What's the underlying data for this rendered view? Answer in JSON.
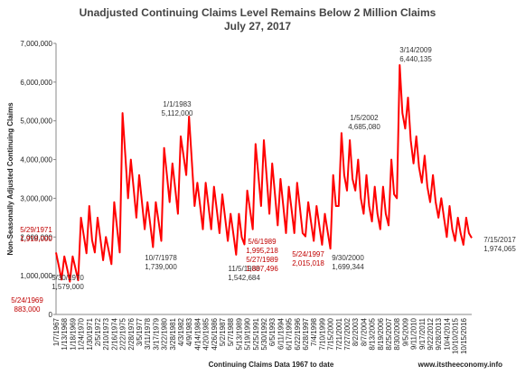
{
  "chart_data": {
    "type": "line",
    "title": "Unadjusted Continuing Claims Level Remains Below 2 Million Claims",
    "subtitle": "July 27, 2017",
    "y_label": "Non-Seasonally Adjusted Continuing Claims",
    "x_label": "Continuing Claims Data 1967 to date",
    "source": "www.itstheeconomy.info",
    "color": "#ff0000",
    "grid": false,
    "ylim": [
      0,
      7000000
    ],
    "yticks": [
      0,
      {
        "value": 1000000,
        "label": "1,000,000"
      },
      {
        "value": 2000000,
        "label": "2,000,000"
      },
      {
        "value": 3000000,
        "label": "3,000,000"
      },
      {
        "value": 4000000,
        "label": "4,000,000"
      },
      {
        "value": 5000000,
        "label": "5,000,000"
      },
      {
        "value": 6000000,
        "label": "6,000,000"
      },
      {
        "value": 7000000,
        "label": "7,000,000"
      }
    ],
    "categories": [
      "1/7/1967",
      null,
      null,
      "1/13/1968",
      null,
      null,
      "1/18/1969",
      null,
      null,
      "1/24/1970",
      null,
      null,
      "1/30/1971",
      null,
      null,
      "2/5/1972",
      null,
      null,
      "2/10/1973",
      null,
      null,
      "2/16/1974",
      null,
      null,
      "2/22/1975",
      null,
      null,
      "2/28/1976",
      null,
      null,
      "3/5/1977",
      null,
      null,
      "3/11/1978",
      null,
      null,
      "3/17/1979",
      null,
      null,
      "3/22/1980",
      null,
      null,
      "3/28/1981",
      null,
      null,
      "4/3/1982",
      null,
      null,
      "4/9/1983",
      null,
      null,
      "4/14/1984",
      null,
      null,
      "4/20/1985",
      null,
      null,
      "4/26/1986",
      null,
      null,
      "5/2/1987",
      null,
      null,
      "5/7/1988",
      null,
      null,
      "5/13/1989",
      null,
      null,
      "5/19/1990",
      null,
      null,
      "5/25/1991",
      null,
      null,
      "5/30/1992",
      null,
      null,
      "6/5/1993",
      null,
      null,
      "6/11/1994",
      null,
      null,
      "6/17/1995",
      null,
      null,
      "6/22/1996",
      null,
      null,
      "6/28/1997",
      null,
      null,
      "7/4/1998",
      null,
      null,
      "7/10/1999",
      null,
      null,
      "7/15/2000",
      null,
      null,
      "7/21/2001",
      null,
      null,
      "7/27/2002",
      null,
      null,
      "8/2/2003",
      null,
      null,
      "8/7/2004",
      null,
      null,
      "8/13/2005",
      null,
      null,
      "8/19/2006",
      null,
      null,
      "8/25/2007",
      null,
      null,
      "8/30/2008",
      null,
      null,
      "9/5/2009",
      null,
      null,
      "9/11/2010",
      null,
      null,
      "9/17/2011",
      null,
      null,
      "9/22/2012",
      null,
      null,
      "9/28/2013",
      null,
      null,
      "10/4/2014",
      null,
      null,
      "10/10/2015",
      null,
      null,
      "10/15/2016",
      null,
      null,
      null
    ],
    "values": [
      1600000,
      1250000,
      900000,
      1500000,
      1180000,
      850000,
      1500000,
      1190000,
      883000,
      2500000,
      2040000,
      1579000,
      2800000,
      1918000,
      1600000,
      2500000,
      1950000,
      1400000,
      2000000,
      1650000,
      1300000,
      2900000,
      2250000,
      1600000,
      5200000,
      4100000,
      3000000,
      4000000,
      3250000,
      2500000,
      3600000,
      2900000,
      2200000,
      2900000,
      2320000,
      1739000,
      2900000,
      2400000,
      1900000,
      4300000,
      3600000,
      2900000,
      3900000,
      3250000,
      2600000,
      4600000,
      4100000,
      3600000,
      5112000,
      3950000,
      2800000,
      3400000,
      2800000,
      2200000,
      3400000,
      2800000,
      2200000,
      3300000,
      2700000,
      2100000,
      3100000,
      2500000,
      1900000,
      2600000,
      2070000,
      1542684,
      2600000,
      1995218,
      1807496,
      3200000,
      2700000,
      2200000,
      4400000,
      3600000,
      2800000,
      4500000,
      3550000,
      2600000,
      3900000,
      3100000,
      2300000,
      3500000,
      2800000,
      2100000,
      3300000,
      2700000,
      2100000,
      3400000,
      2750000,
      2100000,
      2015018,
      2900000,
      2400000,
      1900000,
      2800000,
      2300000,
      1800000,
      2600000,
      2150000,
      1699344,
      3600000,
      2800000,
      2800000,
      4685080,
      3600000,
      3200000,
      4500000,
      3500000,
      3200000,
      4000000,
      3000000,
      2600000,
      3600000,
      2800000,
      2400000,
      3300000,
      2600000,
      2200000,
      3300000,
      2600000,
      2300000,
      4000000,
      3100000,
      3000000,
      6440135,
      5200000,
      4800000,
      5600000,
      4500000,
      3900000,
      4600000,
      3800000,
      3400000,
      4100000,
      3300000,
      2900000,
      3600000,
      2900000,
      2500000,
      3000000,
      2500000,
      2000000,
      2800000,
      2200000,
      1900000,
      2500000,
      2100000,
      1800000,
      2500000,
      2100000,
      1974065
    ],
    "annotations": [
      {
        "date": "5/29/1971",
        "label": "1,918,000",
        "color": "#c00000"
      },
      {
        "date": "5/24/1969",
        "label": "883,000",
        "color": "#c00000"
      },
      {
        "date": "5/30/1970",
        "label": "1,579,000",
        "color": "#333333"
      },
      {
        "date": "10/7/1978",
        "label": "1,739,000",
        "color": "#333333"
      },
      {
        "date": "1/1/1983",
        "label": "5,112,000",
        "color": "#333333"
      },
      {
        "date": "11/5/1988",
        "label": "1,542,684",
        "color": "#333333"
      },
      {
        "date": "5/6/1989",
        "label": "1,995,218",
        "color": "#c00000"
      },
      {
        "date": "5/27/1989",
        "label": "1,807,496",
        "color": "#c00000"
      },
      {
        "date": "5/24/1997",
        "label": "2,015,018",
        "color": "#c00000"
      },
      {
        "date": "9/30/2000",
        "label": "1,699,344",
        "color": "#333333"
      },
      {
        "date": "1/5/2002",
        "label": "4,685,080",
        "color": "#333333"
      },
      {
        "date": "3/14/2009",
        "label": "6,440,135",
        "color": "#333333"
      },
      {
        "date": "7/15/2017",
        "label": "1,974,065",
        "color": "#333333"
      }
    ]
  }
}
